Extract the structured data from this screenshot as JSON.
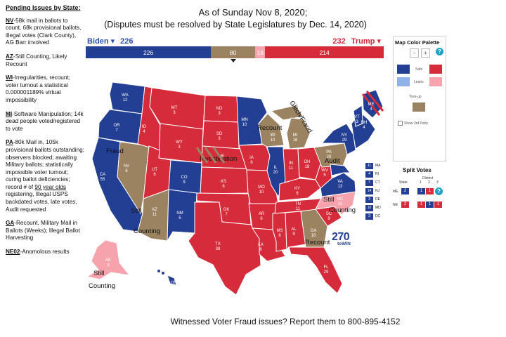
{
  "header": {
    "line1": "As of Sunday Nov 8, 2020;",
    "line2": "(Disputes must be resolved by State Legislatures by Dec. 14, 2020)"
  },
  "left_panel": {
    "title": "Pending Issues by State:",
    "issues": [
      {
        "state": "NV",
        "text": "-58k mail in ballots to count, 68k provisional ballots, illegal votes (Clark County), AG Barr involved"
      },
      {
        "state": "AZ",
        "text": "-Still Counting, Likely Recount"
      },
      {
        "state": "WI",
        "text": "-Irregularities, recount; voter turnout a statistical 0.000001189% virtual impossibility"
      },
      {
        "state": "MI",
        "text": "-Software Manipulation; 14k dead people voted/registered to vote"
      },
      {
        "state": "PA",
        "text_pre": "-80k Mail in, 105k provisional ballots outstanding; observers blocked; awaiting Military ballots; statistically impossible voter turnout; curing ballot deficiencies; record # of ",
        "text_u": "90 year olds",
        "text_post": " registering, Illegal USPS backdated votes, late votes, Audit requested"
      },
      {
        "state": "GA",
        "text": "-Recount, Military Mail in Ballots (Weeks); Illegal Ballot Harvesting"
      },
      {
        "state": "NE02",
        "text": "-Anomolous results"
      }
    ]
  },
  "tally": {
    "biden_name": "Biden",
    "biden_total": "226",
    "trump_name": "Trump",
    "trump_total": "232",
    "segments": {
      "safe_biden": "226",
      "tossup": "80",
      "lean_trump": "18",
      "safe_trump": "214"
    },
    "segment_values": {
      "safe_biden": 226,
      "tossup": 80,
      "lean_trump": 18,
      "safe_trump": 214
    }
  },
  "palette": {
    "title": "Map Color Palette",
    "minus": "-",
    "plus": "+",
    "help": "?",
    "safe": "Safe",
    "leans": "Leans",
    "tossup": "Toss-up",
    "show3rd": "Show 3rd Party",
    "colors": {
      "safe_dem": "#233f93",
      "safe_rep": "#d62b3a",
      "lean_dem": "#8fb2e8",
      "lean_rep": "#f7a3ad",
      "tossup": "#9b8362"
    }
  },
  "split_votes": {
    "title": "Split Votes",
    "state_col": "State",
    "district_col": "District",
    "district_nums": [
      "1",
      "2",
      "3"
    ],
    "me": {
      "label": "ME",
      "state": "2",
      "d1": "1",
      "d2": "1",
      "help": "?"
    },
    "ne": {
      "label": "NE",
      "state": "2",
      "d1": "1",
      "d2": "1",
      "d3": "1"
    }
  },
  "small_states": [
    {
      "ev": "11",
      "abbr": "MA"
    },
    {
      "ev": "4",
      "abbr": "RI"
    },
    {
      "ev": "7",
      "abbr": "CT"
    },
    {
      "ev": "14",
      "abbr": "NJ"
    },
    {
      "ev": "3",
      "abbr": "DE"
    },
    {
      "ev": "10",
      "abbr": "MD"
    },
    {
      "ev": "3",
      "abbr": "DC"
    }
  ],
  "logo": {
    "number": "270",
    "suffix": "toWIN"
  },
  "annotations": {
    "fraud": "Fraud",
    "still_counting_az": [
      "Still",
      "Counting"
    ],
    "investigation": "Investigation",
    "recount_mi": "Recount",
    "glitch": "Glitch/Fraud",
    "audit": "Audit",
    "still_counting_nc": [
      "Still",
      "Counting"
    ],
    "recount_ga": "Recount",
    "still_counting_ak": [
      "Still",
      "Counting"
    ]
  },
  "states": [
    {
      "abbr": "WA",
      "ev": "12"
    },
    {
      "abbr": "OR",
      "ev": "7"
    },
    {
      "abbr": "CA",
      "ev": "55"
    },
    {
      "abbr": "NV",
      "ev": "6"
    },
    {
      "abbr": "ID",
      "ev": "4"
    },
    {
      "abbr": "MT",
      "ev": "3"
    },
    {
      "abbr": "WY",
      "ev": "3"
    },
    {
      "abbr": "UT",
      "ev": "6"
    },
    {
      "abbr": "AZ",
      "ev": "11"
    },
    {
      "abbr": "CO",
      "ev": "9"
    },
    {
      "abbr": "NM",
      "ev": "5"
    },
    {
      "abbr": "ND",
      "ev": "3"
    },
    {
      "abbr": "SD",
      "ev": "3"
    },
    {
      "abbr": "NE",
      "ev": "5"
    },
    {
      "abbr": "KS",
      "ev": "6"
    },
    {
      "abbr": "OK",
      "ev": "7"
    },
    {
      "abbr": "TX",
      "ev": "38"
    },
    {
      "abbr": "MN",
      "ev": "10"
    },
    {
      "abbr": "IA",
      "ev": "6"
    },
    {
      "abbr": "MO",
      "ev": "10"
    },
    {
      "abbr": "AR",
      "ev": "6"
    },
    {
      "abbr": "LA",
      "ev": "8"
    },
    {
      "abbr": "WI",
      "ev": "10"
    },
    {
      "abbr": "IL",
      "ev": "20"
    },
    {
      "abbr": "MI",
      "ev": "16"
    },
    {
      "abbr": "IN",
      "ev": "11"
    },
    {
      "abbr": "OH",
      "ev": "18"
    },
    {
      "abbr": "KY",
      "ev": "8"
    },
    {
      "abbr": "TN",
      "ev": "11"
    },
    {
      "abbr": "MS",
      "ev": "6"
    },
    {
      "abbr": "AL",
      "ev": "9"
    },
    {
      "abbr": "GA",
      "ev": "16"
    },
    {
      "abbr": "FL",
      "ev": "29"
    },
    {
      "abbr": "SC",
      "ev": "9"
    },
    {
      "abbr": "NC",
      "ev": "15"
    },
    {
      "abbr": "VA",
      "ev": "13"
    },
    {
      "abbr": "WV",
      "ev": "5"
    },
    {
      "abbr": "PA",
      "ev": "20"
    },
    {
      "abbr": "NY",
      "ev": "29"
    },
    {
      "abbr": "VT",
      "ev": "3"
    },
    {
      "abbr": "NH",
      "ev": "4"
    },
    {
      "abbr": "ME",
      "ev": "4"
    },
    {
      "abbr": "AK",
      "ev": "3"
    },
    {
      "abbr": "HI",
      "ev": "4"
    }
  ],
  "footer": "Witnessed Voter Fraud issues? Report them to 800-895-4152"
}
